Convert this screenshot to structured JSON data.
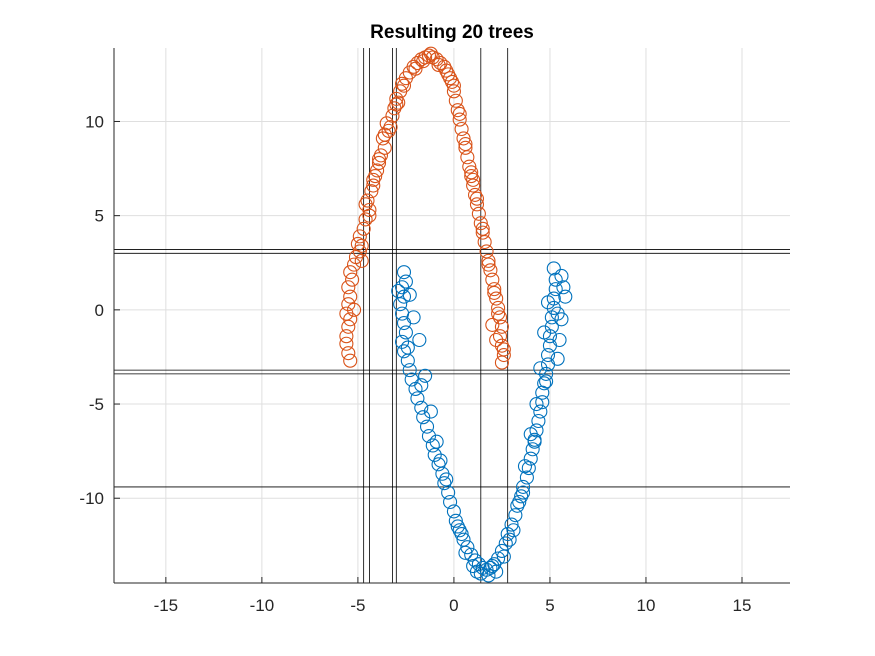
{
  "chart_data": {
    "type": "scatter",
    "title": "Resulting 20 trees",
    "xlabel": "",
    "ylabel": "",
    "xlim": [
      -17.7,
      17.5
    ],
    "ylim": [
      -14.5,
      13.9
    ],
    "xticks": [
      -15,
      -10,
      -5,
      0,
      5,
      10,
      15
    ],
    "yticks": [
      -10,
      -5,
      0,
      5,
      10
    ],
    "xtick_labels": [
      "-15",
      "-10",
      "-5",
      "0",
      "5",
      "10",
      "15"
    ],
    "ytick_labels": [
      "-10",
      "-5",
      "0",
      "5",
      "10"
    ],
    "grid": true,
    "marker": "circle-open",
    "series": [
      {
        "color": "#D95319",
        "points": [
          [
            -5.6,
            -1.8
          ],
          [
            -5.5,
            -2.3
          ],
          [
            -5.4,
            -2.7
          ],
          [
            -5.6,
            -1.4
          ],
          [
            -5.5,
            -0.9
          ],
          [
            -5.4,
            -0.5
          ],
          [
            -5.6,
            -0.2
          ],
          [
            -5.5,
            0.3
          ],
          [
            -5.4,
            0.7
          ],
          [
            -5.5,
            1.2
          ],
          [
            -5.3,
            1.6
          ],
          [
            -5.4,
            2.0
          ],
          [
            -5.2,
            2.4
          ],
          [
            -5.1,
            2.8
          ],
          [
            -4.9,
            3.1
          ],
          [
            -4.8,
            3.4
          ],
          [
            -4.9,
            3.9
          ],
          [
            -4.7,
            4.3
          ],
          [
            -4.6,
            4.8
          ],
          [
            -4.4,
            5.3
          ],
          [
            -4.5,
            5.8
          ],
          [
            -4.3,
            6.3
          ],
          [
            -4.2,
            6.9
          ],
          [
            -4.0,
            7.4
          ],
          [
            -3.9,
            7.8
          ],
          [
            -3.8,
            8.2
          ],
          [
            -3.6,
            8.6
          ],
          [
            -3.7,
            9.1
          ],
          [
            -3.4,
            9.5
          ],
          [
            -3.5,
            9.9
          ],
          [
            -3.2,
            10.3
          ],
          [
            -3.1,
            10.7
          ],
          [
            -3.0,
            11.2
          ],
          [
            -2.8,
            11.6
          ],
          [
            -2.7,
            12.0
          ],
          [
            -2.5,
            12.3
          ],
          [
            -2.3,
            12.6
          ],
          [
            -2.1,
            12.9
          ],
          [
            -1.9,
            13.1
          ],
          [
            -1.7,
            13.3
          ],
          [
            -1.5,
            13.4
          ],
          [
            -1.3,
            13.5
          ],
          [
            -1.1,
            13.4
          ],
          [
            -0.9,
            13.3
          ],
          [
            -0.7,
            13.1
          ],
          [
            -0.5,
            12.9
          ],
          [
            -0.3,
            12.5
          ],
          [
            -0.1,
            12.1
          ],
          [
            0.0,
            11.6
          ],
          [
            0.1,
            11.1
          ],
          [
            0.2,
            10.6
          ],
          [
            0.3,
            10.1
          ],
          [
            0.4,
            9.6
          ],
          [
            0.5,
            9.1
          ],
          [
            0.6,
            8.6
          ],
          [
            0.7,
            8.1
          ],
          [
            0.8,
            7.6
          ],
          [
            0.9,
            7.1
          ],
          [
            1.0,
            6.6
          ],
          [
            1.1,
            6.1
          ],
          [
            1.2,
            5.6
          ],
          [
            1.3,
            5.1
          ],
          [
            1.4,
            4.6
          ],
          [
            1.5,
            4.1
          ],
          [
            1.6,
            3.6
          ],
          [
            1.7,
            3.1
          ],
          [
            1.8,
            2.6
          ],
          [
            1.9,
            2.1
          ],
          [
            2.0,
            1.6
          ],
          [
            2.1,
            1.1
          ],
          [
            2.2,
            0.6
          ],
          [
            2.3,
            0.1
          ],
          [
            2.4,
            -0.4
          ],
          [
            2.5,
            -0.9
          ],
          [
            2.4,
            -1.4
          ],
          [
            2.5,
            -1.9
          ],
          [
            2.6,
            -2.4
          ],
          [
            2.5,
            -2.8
          ],
          [
            2.2,
            -1.6
          ],
          [
            2.0,
            -0.8
          ],
          [
            -5.0,
            3.5
          ],
          [
            -4.6,
            5.6
          ],
          [
            -4.1,
            7.1
          ],
          [
            -3.3,
            9.7
          ],
          [
            -2.9,
            11.0
          ],
          [
            -2.0,
            12.8
          ],
          [
            -1.2,
            13.6
          ],
          [
            -0.4,
            12.7
          ],
          [
            0.3,
            10.4
          ],
          [
            0.9,
            7.3
          ],
          [
            1.5,
            4.3
          ],
          [
            2.1,
            0.9
          ],
          [
            -5.2,
            0.0
          ],
          [
            -4.8,
            2.6
          ],
          [
            -4.4,
            5.0
          ],
          [
            -3.9,
            8.0
          ],
          [
            -3.6,
            9.3
          ],
          [
            -2.6,
            11.9
          ],
          [
            -1.6,
            13.2
          ],
          [
            -0.8,
            13.0
          ],
          [
            0.0,
            11.9
          ],
          [
            0.6,
            8.8
          ],
          [
            1.2,
            5.9
          ],
          [
            1.8,
            2.4
          ],
          [
            2.3,
            -0.2
          ],
          [
            -4.2,
            6.6
          ],
          [
            -3.0,
            10.9
          ],
          [
            -0.2,
            12.3
          ],
          [
            1.0,
            6.9
          ],
          [
            2.6,
            -2.1
          ]
        ]
      },
      {
        "color": "#0072BD",
        "points": [
          [
            -2.6,
            2.0
          ],
          [
            -2.5,
            1.5
          ],
          [
            -2.7,
            1.2
          ],
          [
            -2.6,
            0.7
          ],
          [
            -2.8,
            0.3
          ],
          [
            -2.7,
            -0.2
          ],
          [
            -2.6,
            -0.7
          ],
          [
            -2.5,
            -1.2
          ],
          [
            -2.7,
            -1.7
          ],
          [
            -2.6,
            -2.2
          ],
          [
            -2.4,
            -2.7
          ],
          [
            -2.3,
            -3.2
          ],
          [
            -2.2,
            -3.7
          ],
          [
            -2.0,
            -4.2
          ],
          [
            -1.9,
            -4.7
          ],
          [
            -1.7,
            -5.2
          ],
          [
            -1.6,
            -5.7
          ],
          [
            -1.4,
            -6.2
          ],
          [
            -1.3,
            -6.7
          ],
          [
            -1.1,
            -7.2
          ],
          [
            -1.0,
            -7.7
          ],
          [
            -0.8,
            -8.2
          ],
          [
            -0.6,
            -8.7
          ],
          [
            -0.5,
            -9.2
          ],
          [
            -0.3,
            -9.7
          ],
          [
            -0.2,
            -10.2
          ],
          [
            0.0,
            -10.7
          ],
          [
            0.1,
            -11.2
          ],
          [
            0.3,
            -11.7
          ],
          [
            0.5,
            -12.2
          ],
          [
            0.7,
            -12.6
          ],
          [
            0.9,
            -13.0
          ],
          [
            1.1,
            -13.3
          ],
          [
            1.3,
            -13.5
          ],
          [
            1.5,
            -13.7
          ],
          [
            1.7,
            -13.8
          ],
          [
            1.9,
            -13.7
          ],
          [
            2.1,
            -13.5
          ],
          [
            2.3,
            -13.2
          ],
          [
            2.5,
            -12.8
          ],
          [
            2.7,
            -12.4
          ],
          [
            2.8,
            -11.9
          ],
          [
            3.0,
            -11.4
          ],
          [
            3.2,
            -10.9
          ],
          [
            3.3,
            -10.4
          ],
          [
            3.5,
            -9.9
          ],
          [
            3.6,
            -9.4
          ],
          [
            3.8,
            -8.9
          ],
          [
            3.9,
            -8.4
          ],
          [
            4.0,
            -7.9
          ],
          [
            4.1,
            -7.4
          ],
          [
            4.2,
            -6.9
          ],
          [
            4.3,
            -6.4
          ],
          [
            4.4,
            -5.9
          ],
          [
            4.5,
            -5.4
          ],
          [
            4.6,
            -4.9
          ],
          [
            4.6,
            -4.4
          ],
          [
            4.7,
            -3.9
          ],
          [
            4.8,
            -3.4
          ],
          [
            4.9,
            -2.9
          ],
          [
            4.9,
            -2.4
          ],
          [
            5.0,
            -1.9
          ],
          [
            5.0,
            -1.4
          ],
          [
            5.1,
            -0.9
          ],
          [
            5.1,
            -0.4
          ],
          [
            5.2,
            0.1
          ],
          [
            5.2,
            0.6
          ],
          [
            5.3,
            1.1
          ],
          [
            5.3,
            1.6
          ],
          [
            5.2,
            2.2
          ],
          [
            5.6,
            1.8
          ],
          [
            5.7,
            1.2
          ],
          [
            5.8,
            0.7
          ],
          [
            5.6,
            -0.5
          ],
          [
            5.5,
            -1.6
          ],
          [
            5.4,
            -2.6
          ],
          [
            -2.9,
            1.0
          ],
          [
            -2.3,
            0.8
          ],
          [
            -2.1,
            -0.4
          ],
          [
            -1.8,
            -1.6
          ],
          [
            -1.5,
            -3.5
          ],
          [
            -1.2,
            -5.4
          ],
          [
            -0.9,
            -7.0
          ],
          [
            -0.4,
            -9.0
          ],
          [
            0.2,
            -11.5
          ],
          [
            0.6,
            -12.9
          ],
          [
            1.0,
            -13.6
          ],
          [
            1.4,
            -14.0
          ],
          [
            1.8,
            -14.1
          ],
          [
            2.2,
            -13.9
          ],
          [
            2.6,
            -13.1
          ],
          [
            3.1,
            -11.7
          ],
          [
            3.4,
            -10.2
          ],
          [
            3.7,
            -8.3
          ],
          [
            4.0,
            -6.6
          ],
          [
            4.3,
            -5.0
          ],
          [
            4.5,
            -3.1
          ],
          [
            4.7,
            -1.2
          ],
          [
            4.9,
            0.4
          ],
          [
            -2.4,
            -2.0
          ],
          [
            -1.7,
            -4.0
          ],
          [
            -0.7,
            -8.0
          ],
          [
            0.4,
            -11.9
          ],
          [
            1.2,
            -13.9
          ],
          [
            2.0,
            -13.6
          ],
          [
            2.9,
            -12.2
          ],
          [
            3.6,
            -9.7
          ],
          [
            4.2,
            -7.0
          ],
          [
            4.8,
            -3.8
          ],
          [
            5.4,
            -0.2
          ]
        ]
      }
    ],
    "split_lines": {
      "vertical_x": [
        -4.7,
        -4.4,
        -3.2,
        -3.0,
        1.4,
        2.8
      ],
      "horizontal_y": [
        3.2,
        3.0,
        -3.2,
        -3.4,
        -9.4
      ]
    }
  }
}
